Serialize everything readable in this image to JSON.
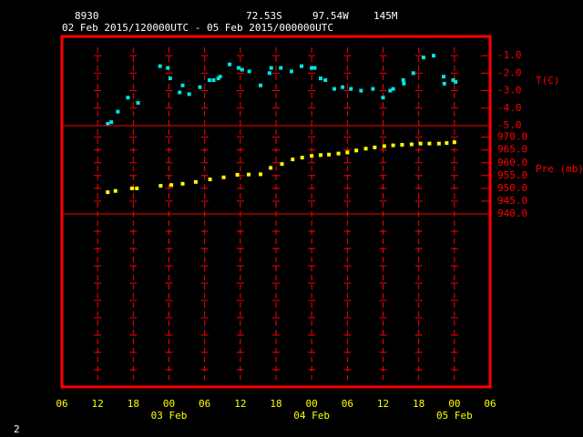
{
  "header": {
    "station": "8930",
    "latitude": "72.53S",
    "longitude": "97.54W",
    "elevation": "145M",
    "period": "02 Feb 2015/120000UTC - 05 Feb 2015/000000UTC",
    "page": "2"
  },
  "x_axis": {
    "xlim": [
      6,
      78
    ],
    "xticks": [
      {
        "value": 6,
        "label": "06"
      },
      {
        "value": 12,
        "label": "12"
      },
      {
        "value": 18,
        "label": "18"
      },
      {
        "value": 24,
        "label": "00"
      },
      {
        "value": 30,
        "label": "06"
      },
      {
        "value": 36,
        "label": "12"
      },
      {
        "value": 42,
        "label": "18"
      },
      {
        "value": 48,
        "label": "00"
      },
      {
        "value": 54,
        "label": "06"
      },
      {
        "value": 60,
        "label": "12"
      },
      {
        "value": 66,
        "label": "18"
      },
      {
        "value": 72,
        "label": "00"
      },
      {
        "value": 78,
        "label": "06"
      }
    ],
    "day_labels": [
      {
        "value": 24,
        "label": "03 Feb"
      },
      {
        "value": 48,
        "label": "04 Feb"
      },
      {
        "value": 72,
        "label": "05 Feb"
      }
    ]
  },
  "chart_data": [
    {
      "type": "scatter",
      "y_label": "T(C)",
      "color": "#00e5e5",
      "ylim": [
        -5.0,
        0.1
      ],
      "yticks": [
        {
          "value": -1,
          "label": "-1.0"
        },
        {
          "value": -2,
          "label": "-2.0"
        },
        {
          "value": -3,
          "label": "-3.0"
        },
        {
          "value": -4,
          "label": "-4.0"
        },
        {
          "value": -5,
          "label": "-5.0"
        }
      ],
      "x": [
        13.7,
        14.3,
        15.4,
        17.1,
        18.8,
        22.5,
        23.8,
        24.2,
        25.8,
        26.3,
        27.4,
        29.2,
        30.8,
        31.5,
        32.3,
        32.6,
        34.2,
        35.7,
        36.3,
        37.5,
        39.4,
        40.9,
        41.2,
        42.8,
        44.6,
        46.3,
        48.0,
        48.5,
        49.5,
        50.3,
        51.8,
        53.2,
        54.6,
        56.3,
        58.3,
        60.0,
        61.2,
        61.7,
        63.4,
        63.5,
        65.1,
        66.8,
        68.5,
        70.2,
        70.3,
        71.8,
        72.2
      ],
      "values": [
        -4.9,
        -4.8,
        -4.2,
        -3.4,
        -3.7,
        -1.6,
        -1.7,
        -2.3,
        -3.1,
        -2.7,
        -3.2,
        -2.8,
        -2.4,
        -2.4,
        -2.3,
        -2.2,
        -1.5,
        -1.7,
        -1.8,
        -1.9,
        -2.7,
        -2.0,
        -1.7,
        -1.7,
        -1.9,
        -1.6,
        -1.7,
        -1.7,
        -2.3,
        -2.4,
        -2.9,
        -2.8,
        -2.9,
        -3.0,
        -2.9,
        -3.4,
        -3.0,
        -2.9,
        -2.4,
        -2.6,
        -2.0,
        -1.1,
        -1.0,
        -2.2,
        -2.6,
        -2.4,
        -2.5
      ]
    },
    {
      "type": "scatter",
      "y_label": "Pre (mb)",
      "color": "#ffff00",
      "ylim": [
        940,
        974.5
      ],
      "yticks": [
        {
          "value": 970,
          "label": "970.0"
        },
        {
          "value": 965,
          "label": "965.0"
        },
        {
          "value": 960,
          "label": "960.0"
        },
        {
          "value": 955,
          "label": "955.0"
        },
        {
          "value": 950,
          "label": "950.0"
        },
        {
          "value": 945,
          "label": "945.0"
        },
        {
          "value": 940,
          "label": "940.0"
        }
      ],
      "x": [
        13.7,
        15.0,
        17.8,
        18.6,
        22.6,
        24.4,
        26.3,
        28.5,
        30.9,
        33.2,
        35.5,
        37.4,
        39.4,
        41.1,
        43.0,
        44.8,
        46.4,
        48.0,
        49.5,
        50.9,
        52.5,
        54.0,
        55.5,
        57.1,
        58.6,
        60.2,
        61.7,
        63.2,
        64.8,
        66.3,
        67.8,
        69.4,
        70.7,
        72.0
      ],
      "values": [
        948.5,
        949,
        950,
        950,
        951,
        951.3,
        951.8,
        952.5,
        953.5,
        954.3,
        955.3,
        955.4,
        955.5,
        958,
        959.5,
        961.3,
        962,
        962.7,
        963,
        963.2,
        963.6,
        964,
        964.8,
        965.5,
        966,
        966.5,
        966.8,
        967,
        967.2,
        967.5,
        967.5,
        967.5,
        967.7,
        968
      ]
    }
  ]
}
